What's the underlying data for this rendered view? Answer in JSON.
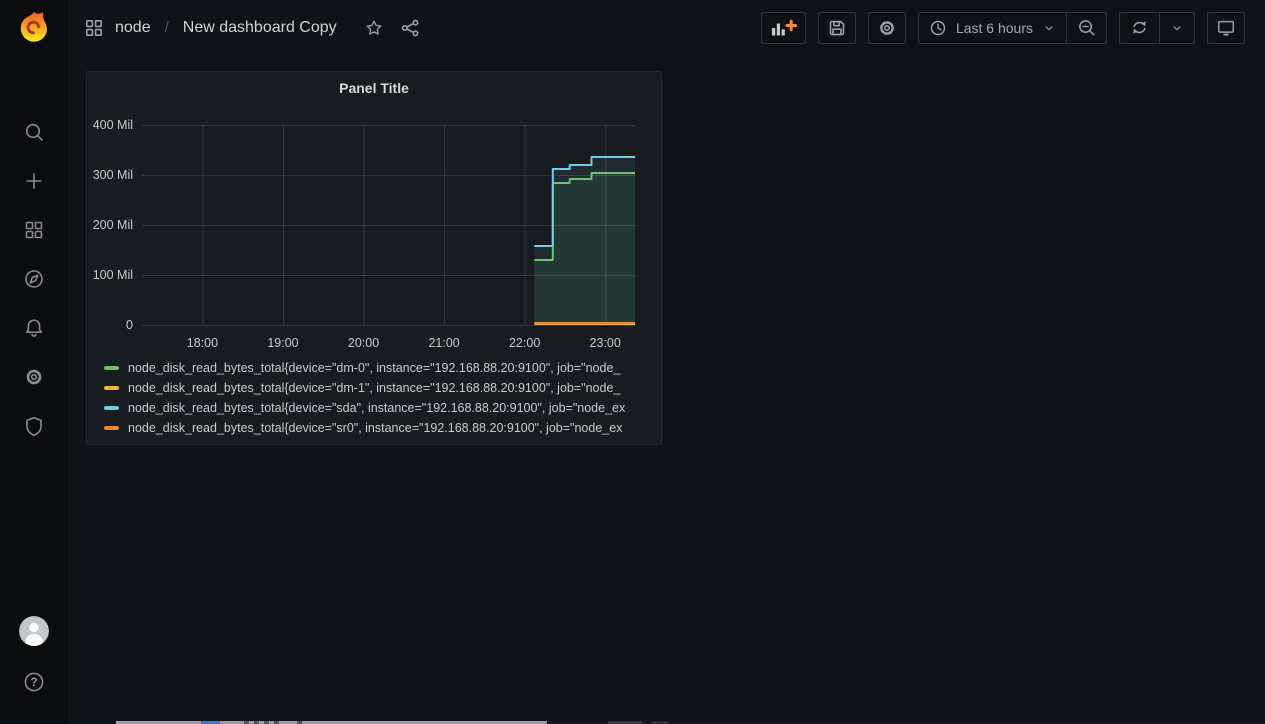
{
  "theme": {
    "background": "#111217",
    "sidebar_bg": "#0b0c0e",
    "panel_bg": "#181b1f",
    "accent_orange": "#ff8833",
    "green": "#73BF69",
    "yellow": "#EAB839",
    "blue": "#6ED0E0",
    "orange": "#EF843C"
  },
  "sidebar": {
    "icons": [
      "grafana-logo",
      "search",
      "create-plus",
      "dashboards-grid",
      "explore-compass",
      "alerting-bell",
      "configuration-gear",
      "server-admin-shield"
    ],
    "bottom_icons": [
      "user-avatar",
      "help-question"
    ]
  },
  "header": {
    "breadcrumb": {
      "section": "node",
      "separator": "/",
      "title": "New dashboard Copy"
    },
    "toolbar": {
      "time_range_label": "Last 6 hours",
      "buttons": [
        "add-panel",
        "save-dashboard",
        "dashboard-settings",
        "time-picker",
        "zoom-out",
        "refresh",
        "refresh-interval",
        "cycle-view-mode"
      ]
    }
  },
  "panel": {
    "title": "Panel Title"
  },
  "chart_data": {
    "type": "area",
    "title": "Panel Title",
    "unit": "Mil",
    "grid": true,
    "legend_position": "bottom",
    "fill_opacity": 0.09,
    "x_axis": {
      "ticks": [
        "18:00",
        "19:00",
        "20:00",
        "21:00",
        "22:00",
        "23:00"
      ],
      "tick_hours": [
        18,
        19,
        20,
        21,
        22,
        23
      ],
      "range_hours": [
        17.25,
        23.37
      ]
    },
    "y_axis": {
      "ticks": [
        "0",
        "100 Mil",
        "200 Mil",
        "300 Mil",
        "400 Mil"
      ],
      "tick_values": [
        0,
        100,
        200,
        300,
        400
      ],
      "range": [
        0,
        400
      ]
    },
    "series": [
      {
        "label": "node_disk_read_bytes_total{device=\"dm-0\", instance=\"192.168.88.20:9100\", job=\"node_",
        "device": "dm-0",
        "color": "#73BF69",
        "points": [
          [
            22.12,
            130
          ],
          [
            22.35,
            130
          ],
          [
            22.35,
            284
          ],
          [
            22.56,
            284
          ],
          [
            22.56,
            292
          ],
          [
            22.83,
            292
          ],
          [
            22.83,
            304
          ],
          [
            23.37,
            304
          ]
        ]
      },
      {
        "label": "node_disk_read_bytes_total{device=\"dm-1\", instance=\"192.168.88.20:9100\", job=\"node_",
        "device": "dm-1",
        "color": "#EAB839",
        "points": [
          [
            22.12,
            2
          ],
          [
            23.37,
            2
          ]
        ]
      },
      {
        "label": "node_disk_read_bytes_total{device=\"sda\", instance=\"192.168.88.20:9100\", job=\"node_ex",
        "device": "sda",
        "color": "#6ED0E0",
        "points": [
          [
            22.12,
            158
          ],
          [
            22.35,
            158
          ],
          [
            22.35,
            312
          ],
          [
            22.56,
            312
          ],
          [
            22.56,
            320
          ],
          [
            22.83,
            320
          ],
          [
            22.83,
            336
          ],
          [
            23.37,
            336
          ]
        ]
      },
      {
        "label": "node_disk_read_bytes_total{device=\"sr0\", instance=\"192.168.88.20:9100\", job=\"node_ex",
        "device": "sr0",
        "color": "#EF843C",
        "points": [
          [
            22.12,
            4
          ],
          [
            23.37,
            4
          ]
        ]
      }
    ]
  }
}
